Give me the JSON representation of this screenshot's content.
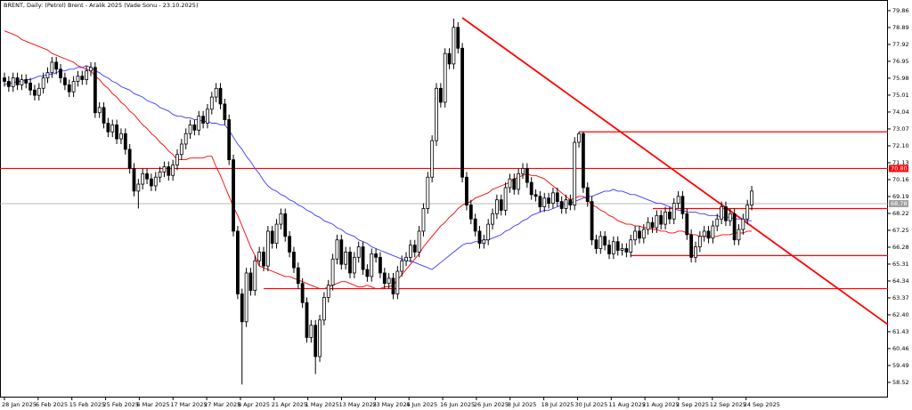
{
  "chart_data": {
    "type": "candlestick",
    "title": "BRENT, Daily: (Petrol) Brent - Aralık 2025 (Vade Sonu - 23.10.2025)",
    "ylim": [
      57.65,
      80.47
    ],
    "yticks": [
      79.86,
      78.89,
      77.92,
      76.95,
      75.98,
      75.01,
      74.04,
      73.07,
      {
        "value": 72.1,
        "label": "72.10"
      },
      71.13,
      70.16,
      69.19,
      68.22,
      67.25,
      66.28,
      65.31,
      64.34,
      63.37,
      {
        "value": 62.4,
        "label": "62.40"
      },
      61.43,
      60.46,
      59.49,
      58.52
    ],
    "x_labels": [
      "28 Jan 2025",
      "6 Feb 2025",
      "15 Feb 2025",
      "25 Feb 2025",
      "6 Mar 2025",
      "17 Mar 2025",
      "27 Mar 2025",
      "8 Apr 2025",
      "21 Apr 2025",
      "1 May 2025",
      "13 May 2025",
      "23 May 2025",
      "4 Jun 2025",
      "16 Jun 2025",
      "26 Jun 2025",
      "8 Jul 2025",
      "18 Jul 2025",
      "30 Jul 2025",
      "11 Aug 2025",
      "21 Aug 2025",
      "2 Sep 2025",
      "12 Sep 2025",
      "24 Sep 2025"
    ],
    "candles": {
      "open": [
        76.0,
        75.8,
        75.5,
        76.0,
        75.6,
        75.9,
        75.7,
        75.3,
        75.0,
        75.4,
        76.0,
        76.3,
        76.9,
        76.5,
        76.0,
        75.6,
        75.2,
        75.8,
        76.1,
        75.9,
        76.4,
        76.6,
        74.0,
        74.3,
        73.4,
        72.9,
        73.3,
        72.5,
        72.8,
        71.9,
        70.8,
        69.5,
        69.9,
        70.5,
        70.2,
        69.8,
        70.3,
        70.6,
        70.9,
        70.4,
        71.0,
        71.6,
        72.2,
        72.8,
        73.3,
        73.0,
        73.8,
        73.4,
        74.2,
        74.9,
        75.4,
        74.5,
        73.6,
        71.3,
        67.2,
        63.6,
        62.0,
        64.8,
        63.8,
        65.5,
        66.0,
        65.2,
        67.2,
        66.5,
        67.6,
        68.2,
        66.9,
        66.0,
        65.1,
        64.2,
        63.1,
        61.1,
        61.8,
        60.0,
        62.1,
        63.4,
        64.1,
        65.6,
        66.7,
        65.3,
        66.0,
        64.8,
        65.7,
        66.3,
        65.0,
        64.6,
        65.9,
        65.7,
        64.8,
        64.2,
        64.5,
        63.6,
        64.9,
        65.5,
        65.7,
        66.4,
        66.0,
        67.2,
        68.5,
        70.3,
        72.4,
        75.4,
        74.6,
        77.4,
        76.8,
        78.9,
        77.7,
        70.3,
        68.7,
        67.9,
        67.2,
        66.5,
        66.7,
        67.6,
        68.2,
        69.0,
        68.4,
        69.7,
        70.2,
        69.6,
        70.5,
        70.8,
        70.0,
        69.3,
        69.2,
        68.6,
        69.1,
        68.8,
        69.4,
        68.9,
        68.5,
        69.0,
        68.7,
        72.3,
        72.8,
        69.7,
        68.9,
        66.7,
        66.2,
        66.9,
        66.4,
        65.9,
        66.6,
        66.1,
        66.2,
        66.0,
        66.7,
        67.2,
        66.8,
        67.3,
        67.7,
        67.4,
        68.1,
        67.6,
        68.3,
        67.9,
        68.8,
        69.2,
        68.2,
        67.0,
        65.7,
        66.3,
        66.9,
        67.2,
        66.8,
        67.5,
        67.9,
        68.6,
        67.8,
        68.2,
        66.7,
        67.3,
        67.9,
        68.7
      ],
      "high": [
        76.3,
        76.1,
        76.3,
        76.3,
        76.2,
        76.2,
        76.0,
        75.6,
        75.7,
        76.3,
        76.6,
        77.2,
        77.2,
        76.8,
        76.3,
        75.9,
        76.1,
        76.4,
        76.4,
        76.7,
        76.9,
        76.9,
        74.6,
        74.6,
        73.7,
        73.6,
        73.6,
        73.1,
        73.1,
        72.2,
        71.1,
        70.2,
        70.8,
        70.8,
        70.5,
        70.6,
        70.9,
        71.2,
        71.2,
        71.3,
        71.9,
        72.5,
        73.1,
        73.6,
        73.6,
        74.1,
        74.1,
        74.5,
        75.2,
        75.7,
        75.7,
        74.8,
        73.9,
        71.6,
        67.5,
        63.9,
        65.1,
        65.1,
        65.8,
        66.3,
        66.3,
        67.5,
        67.5,
        67.9,
        68.5,
        68.5,
        67.2,
        66.3,
        65.4,
        64.5,
        63.4,
        62.1,
        62.1,
        62.4,
        63.7,
        64.4,
        65.9,
        67.0,
        67.0,
        66.3,
        66.3,
        66.0,
        66.6,
        66.6,
        65.3,
        66.2,
        66.2,
        66.0,
        65.1,
        64.8,
        64.8,
        65.2,
        65.8,
        66.0,
        66.7,
        66.7,
        67.5,
        68.8,
        70.6,
        72.7,
        75.7,
        75.7,
        77.7,
        77.7,
        79.4,
        79.2,
        78.0,
        70.6,
        69.0,
        68.2,
        67.5,
        67.0,
        67.9,
        68.5,
        69.3,
        69.3,
        70.0,
        70.5,
        70.5,
        70.8,
        71.1,
        71.1,
        70.3,
        69.6,
        69.5,
        69.4,
        69.4,
        69.7,
        69.7,
        69.2,
        69.3,
        69.3,
        72.6,
        72.9,
        72.9,
        70.0,
        69.2,
        67.0,
        67.2,
        67.2,
        66.7,
        66.9,
        66.9,
        66.5,
        66.5,
        67.0,
        67.5,
        67.5,
        67.6,
        68.0,
        68.0,
        68.4,
        68.4,
        68.6,
        68.6,
        69.1,
        69.5,
        69.5,
        68.5,
        67.3,
        66.6,
        67.2,
        67.5,
        67.5,
        67.8,
        68.2,
        68.9,
        68.9,
        68.5,
        68.5,
        67.6,
        68.2,
        69.0,
        69.8
      ],
      "low": [
        75.5,
        75.2,
        75.2,
        75.3,
        75.3,
        75.4,
        75.0,
        74.7,
        74.7,
        75.1,
        75.7,
        76.0,
        76.2,
        75.7,
        75.3,
        74.9,
        74.9,
        75.5,
        75.6,
        75.6,
        76.1,
        73.7,
        73.7,
        73.1,
        72.6,
        72.6,
        72.2,
        72.2,
        71.6,
        70.5,
        69.2,
        68.5,
        69.6,
        69.9,
        69.5,
        69.5,
        70.0,
        70.3,
        70.1,
        70.1,
        70.7,
        71.3,
        71.9,
        72.5,
        72.7,
        72.7,
        73.1,
        73.1,
        73.9,
        74.6,
        74.2,
        73.3,
        71.0,
        66.9,
        63.3,
        58.4,
        61.7,
        63.5,
        63.5,
        65.2,
        64.9,
        64.9,
        66.2,
        66.2,
        67.3,
        66.6,
        65.7,
        64.8,
        63.9,
        62.8,
        60.8,
        60.8,
        59.0,
        59.7,
        61.8,
        63.1,
        63.8,
        65.3,
        65.0,
        65.0,
        64.5,
        64.5,
        65.4,
        64.7,
        64.3,
        64.3,
        65.4,
        64.5,
        63.9,
        63.9,
        63.3,
        63.3,
        64.6,
        65.2,
        65.4,
        65.7,
        65.7,
        66.9,
        68.2,
        70.0,
        72.1,
        74.3,
        74.3,
        76.5,
        76.5,
        77.4,
        70.0,
        68.4,
        67.6,
        66.9,
        66.2,
        66.2,
        66.4,
        67.3,
        67.9,
        68.1,
        68.1,
        69.4,
        69.3,
        69.3,
        70.2,
        69.7,
        69.0,
        68.9,
        68.3,
        68.3,
        68.5,
        68.5,
        68.6,
        68.2,
        68.2,
        68.4,
        68.4,
        72.0,
        69.4,
        68.6,
        66.4,
        65.9,
        65.9,
        66.1,
        65.6,
        65.6,
        65.8,
        65.8,
        65.7,
        65.7,
        66.4,
        66.5,
        66.5,
        67.0,
        67.1,
        67.1,
        67.3,
        67.3,
        67.6,
        67.6,
        68.5,
        67.9,
        66.7,
        65.4,
        65.4,
        66.0,
        66.6,
        66.5,
        66.5,
        67.2,
        67.6,
        67.5,
        67.5,
        66.4,
        66.4,
        67.0,
        67.6,
        68.4
      ],
      "close": [
        75.8,
        75.5,
        76.0,
        75.6,
        75.9,
        75.7,
        75.3,
        75.0,
        75.4,
        76.0,
        76.3,
        76.9,
        76.5,
        76.0,
        75.6,
        75.2,
        75.8,
        76.1,
        75.9,
        76.4,
        76.6,
        74.0,
        74.3,
        73.4,
        72.9,
        73.3,
        72.5,
        72.8,
        71.9,
        70.8,
        69.5,
        69.9,
        70.5,
        70.2,
        69.8,
        70.3,
        70.6,
        70.9,
        70.4,
        71.0,
        71.6,
        72.2,
        72.8,
        73.3,
        73.0,
        73.8,
        73.4,
        74.2,
        74.9,
        75.4,
        74.5,
        73.6,
        71.3,
        67.2,
        63.6,
        62.0,
        64.8,
        63.8,
        65.5,
        66.0,
        65.2,
        67.2,
        66.5,
        67.6,
        68.2,
        66.9,
        66.0,
        65.1,
        64.2,
        63.1,
        61.1,
        61.8,
        60.0,
        62.1,
        63.4,
        64.1,
        65.6,
        66.7,
        65.3,
        66.0,
        64.8,
        65.7,
        66.3,
        65.0,
        64.6,
        65.9,
        65.7,
        64.8,
        64.2,
        64.5,
        63.6,
        64.9,
        65.5,
        65.7,
        66.4,
        66.0,
        67.2,
        68.5,
        70.3,
        72.4,
        75.4,
        74.6,
        77.4,
        76.8,
        78.9,
        77.7,
        70.3,
        68.7,
        67.9,
        67.2,
        66.5,
        66.7,
        67.6,
        68.2,
        69.0,
        68.4,
        69.7,
        70.2,
        69.6,
        70.5,
        70.8,
        70.0,
        69.3,
        69.2,
        68.6,
        69.1,
        68.8,
        69.4,
        68.9,
        68.5,
        69.0,
        68.7,
        72.3,
        72.8,
        69.7,
        68.9,
        66.7,
        66.2,
        66.9,
        66.4,
        65.9,
        66.6,
        66.1,
        66.2,
        66.0,
        66.7,
        67.2,
        66.8,
        67.3,
        67.7,
        67.4,
        68.1,
        67.6,
        68.3,
        67.9,
        68.8,
        69.2,
        68.2,
        67.0,
        65.7,
        66.3,
        66.9,
        67.2,
        66.8,
        67.5,
        67.9,
        68.6,
        67.8,
        68.2,
        66.7,
        67.3,
        67.9,
        68.7,
        69.5
      ]
    },
    "moving_averages": [
      {
        "color": "#ff0000",
        "values": [
          78.7,
          78.6,
          78.5,
          78.4,
          78.2,
          78.1,
          78.0,
          77.9,
          77.8,
          77.7,
          77.6,
          77.4,
          77.3,
          77.2,
          77.1,
          77.0,
          76.9,
          76.7,
          76.6,
          76.5,
          76.4,
          76.1,
          75.9,
          75.6,
          75.4,
          75.1,
          74.9,
          74.6,
          74.4,
          74.1,
          73.9,
          73.6,
          73.3,
          73.1,
          72.8,
          72.6,
          72.3,
          72.1,
          71.8,
          71.6,
          71.3,
          71.3,
          71.3,
          71.4,
          71.4,
          71.4,
          71.4,
          71.5,
          71.5,
          70.9,
          70.4,
          69.8,
          69.2,
          68.6,
          68.1,
          67.5,
          66.9,
          66.3,
          65.8,
          65.2,
          65.1,
          65.0,
          64.9,
          64.8,
          64.7,
          64.6,
          64.6,
          64.5,
          64.4,
          64.3,
          64.2,
          64.1,
          64.0,
          63.9,
          63.9,
          64.0,
          64.1,
          64.2,
          64.3,
          64.3,
          64.2,
          64.1,
          64.0,
          64.0,
          64.1,
          64.0,
          63.9,
          63.9,
          64.0,
          64.0,
          64.1,
          64.4,
          64.7,
          65.0,
          65.3,
          65.6,
          65.9,
          66.3,
          66.6,
          66.9,
          67.2,
          67.5,
          67.7,
          68.0,
          68.2,
          68.5,
          68.7,
          68.8,
          68.9,
          69.1,
          69.2,
          69.3,
          69.4,
          69.6,
          69.7,
          69.8,
          69.9,
          70.0,
          70.2,
          70.3,
          70.4,
          70.5,
          70.4,
          70.4,
          70.3,
          70.2,
          70.0,
          69.8,
          69.6,
          69.4,
          69.2,
          69.0,
          69.1,
          69.2,
          69.2,
          69.0,
          68.7,
          68.6,
          68.4,
          68.3,
          68.1,
          68.0,
          67.8,
          67.7,
          67.6,
          67.6,
          67.5,
          67.5,
          67.4,
          67.4,
          67.3,
          67.3,
          67.2,
          67.2,
          67.1,
          67.1,
          67.2,
          67.2,
          67.1,
          67.0,
          67.0,
          66.9,
          66.9,
          66.9,
          66.9,
          66.9,
          67.0,
          67.0,
          67.0,
          67.1,
          67.1,
          67.1,
          67.2,
          67.2
        ]
      },
      {
        "color": "#3a3aff",
        "values": [
          75.6,
          75.7,
          75.7,
          75.8,
          75.8,
          75.9,
          75.9,
          76.0,
          76.1,
          76.1,
          76.2,
          76.2,
          76.3,
          76.4,
          76.4,
          76.5,
          76.5,
          76.6,
          76.6,
          76.7,
          76.6,
          76.4,
          76.3,
          76.1,
          76.0,
          75.8,
          75.7,
          75.5,
          75.4,
          75.3,
          75.1,
          75.0,
          74.9,
          74.7,
          74.6,
          74.5,
          74.3,
          74.2,
          74.1,
          73.9,
          73.8,
          73.8,
          73.7,
          73.7,
          73.6,
          73.6,
          73.5,
          73.5,
          73.4,
          73.4,
          73.3,
          73.3,
          73.0,
          72.6,
          72.2,
          71.9,
          71.5,
          71.2,
          70.8,
          70.5,
          70.1,
          69.8,
          69.6,
          69.5,
          69.3,
          69.2,
          69.0,
          68.9,
          68.7,
          68.6,
          68.4,
          68.3,
          68.1,
          68.0,
          67.8,
          67.7,
          67.6,
          67.4,
          67.3,
          67.1,
          67.0,
          66.9,
          66.7,
          66.6,
          66.5,
          66.3,
          66.2,
          66.1,
          66.0,
          65.9,
          65.8,
          65.7,
          65.6,
          65.5,
          65.5,
          65.4,
          65.3,
          65.2,
          65.1,
          65.0,
          65.2,
          65.4,
          65.6,
          65.8,
          66.0,
          66.2,
          66.4,
          66.5,
          66.5,
          66.6,
          66.6,
          66.7,
          66.7,
          66.8,
          66.9,
          67.0,
          67.2,
          67.3,
          67.5,
          67.6,
          67.8,
          67.9,
          68.1,
          68.2,
          68.3,
          68.4,
          68.4,
          68.5,
          68.6,
          68.7,
          68.8,
          68.8,
          68.9,
          69.0,
          69.1,
          69.2,
          69.2,
          69.3,
          69.4,
          69.5,
          69.5,
          69.6,
          69.5,
          69.5,
          69.4,
          69.3,
          69.3,
          69.2,
          69.1,
          69.0,
          68.9,
          68.8,
          68.8,
          68.7,
          68.6,
          68.5,
          68.4,
          68.4,
          68.3,
          68.3,
          68.3,
          68.2,
          68.2,
          68.1,
          68.1,
          68.1,
          68.0,
          68.0,
          68.0,
          67.9,
          67.9,
          67.9,
          67.8,
          67.8
        ]
      }
    ],
    "horizontal_lines": [
      {
        "value": 70.8,
        "label": "70.80",
        "color": "#ff0000"
      },
      {
        "value": 68.78,
        "label": "68.78",
        "color": "#a0a0a0"
      },
      {
        "value": 72.9,
        "color": "#ff0000"
      },
      {
        "value": 68.5,
        "color": "#ff0000"
      },
      {
        "value": 65.8,
        "color": "#ff0000"
      },
      {
        "value": 63.9,
        "color": "#ff0000"
      }
    ],
    "trendline": {
      "color": "#ff0000",
      "values": [
        79.45,
        61.84
      ]
    }
  }
}
